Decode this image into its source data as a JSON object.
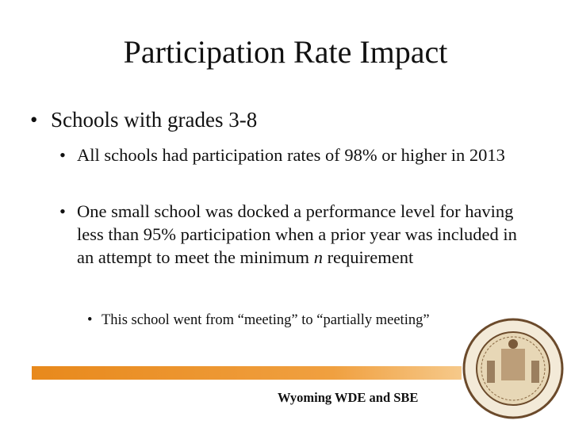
{
  "title": "Participation Rate Impact",
  "bullets": [
    {
      "text": "Schools with grades 3-8",
      "children": [
        {
          "text": "All schools had participation rates of 98% or higher in 2013"
        },
        {
          "parts": [
            "One small school was docked a performance level for having less than 95% participation when a prior year was included in an attempt to meet the minimum ",
            "n",
            " requirement"
          ],
          "children": [
            {
              "text": "This school went from “meeting” to “partially meeting”"
            }
          ]
        }
      ]
    }
  ],
  "footer": "Wyoming WDE and SBE"
}
